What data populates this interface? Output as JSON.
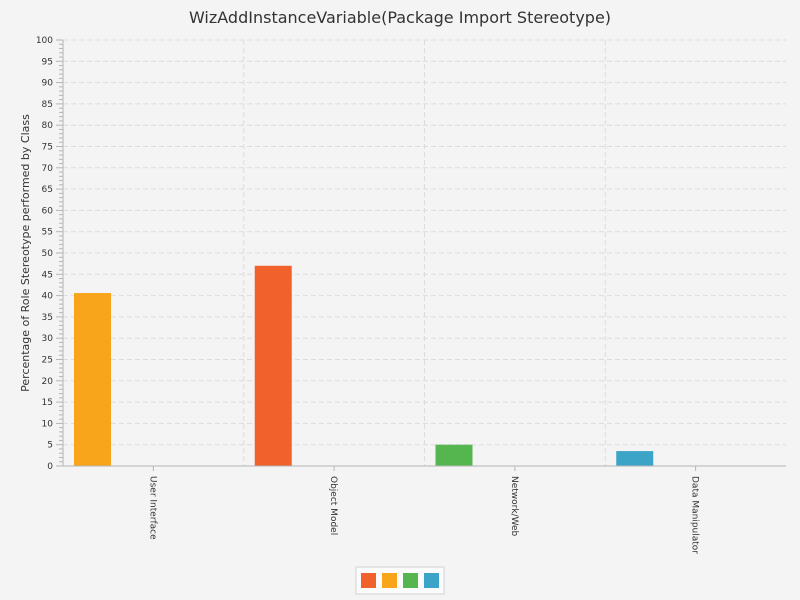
{
  "chart_data": {
    "type": "bar",
    "title": "WizAddInstanceVariable(Package Import Stereotype)",
    "xlabel": "",
    "ylabel": "Percentage of Role Stereotype performed by Class",
    "ylim": [
      0,
      100
    ],
    "ytick_step": 5,
    "grid": true,
    "legend_placement": "bottom-center",
    "categories": [
      "User Interface",
      "Object Model",
      "Network/Web",
      "Data Manipulator"
    ],
    "values": [
      40.6,
      47.0,
      5.0,
      3.5
    ],
    "colors": [
      "#f8a51b",
      "#f1612c",
      "#55b650",
      "#3ca4c6"
    ],
    "legend_colors": [
      "#f1612c",
      "#f8a51b",
      "#55b650",
      "#3ca4c6"
    ]
  }
}
